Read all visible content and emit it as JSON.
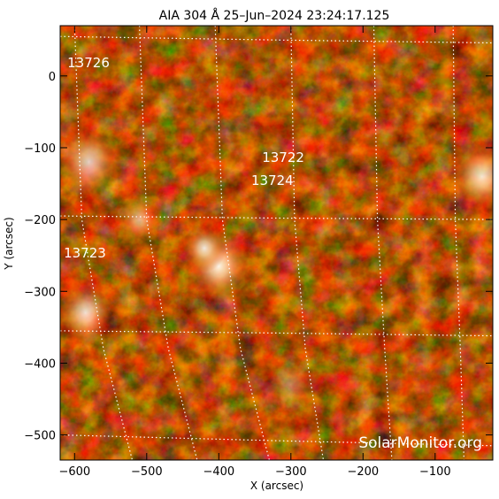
{
  "figure": {
    "title": "AIA 304 Å 25–Jun–2024 23:24:17.125",
    "watermark": "SolarMonitor.org",
    "colormap": [
      "#000000",
      "#3a0500",
      "#7a1400",
      "#b83000",
      "#e25a10",
      "#f79a4a",
      "#ffd6a8",
      "#ffffff"
    ]
  },
  "axes": {
    "xlabel": "X (arcsec)",
    "ylabel": "Y (arcsec)",
    "xlim": [
      -620,
      -20
    ],
    "ylim": [
      -535,
      70
    ],
    "xticks": [
      -600,
      -500,
      -400,
      -300,
      -200,
      -100
    ],
    "yticks": [
      0,
      -100,
      -200,
      -300,
      -400,
      -500
    ],
    "xtick_labels": [
      "−600",
      "−500",
      "−400",
      "−300",
      "−200",
      "−100"
    ],
    "ytick_labels": [
      "0",
      "−100",
      "−200",
      "−300",
      "−400",
      "−500"
    ]
  },
  "regions": [
    {
      "label": "13726",
      "x": -610,
      "y": 12
    },
    {
      "label": "13722",
      "x": -340,
      "y": -120
    },
    {
      "label": "13724",
      "x": -355,
      "y": -152
    },
    {
      "label": "13723",
      "x": -615,
      "y": -253
    }
  ],
  "features": {
    "bright_plage": [
      {
        "x": -400,
        "y": -265,
        "r": 45,
        "level": 0.95
      },
      {
        "x": -420,
        "y": -240,
        "r": 30,
        "level": 0.9
      },
      {
        "x": -580,
        "y": -120,
        "r": 45,
        "level": 0.8
      },
      {
        "x": -585,
        "y": -330,
        "r": 40,
        "level": 0.85
      },
      {
        "x": -35,
        "y": -140,
        "r": 45,
        "level": 0.85
      },
      {
        "x": -510,
        "y": -200,
        "r": 30,
        "level": 0.6
      },
      {
        "x": -300,
        "y": -430,
        "r": 35,
        "level": 0.35
      }
    ]
  }
}
